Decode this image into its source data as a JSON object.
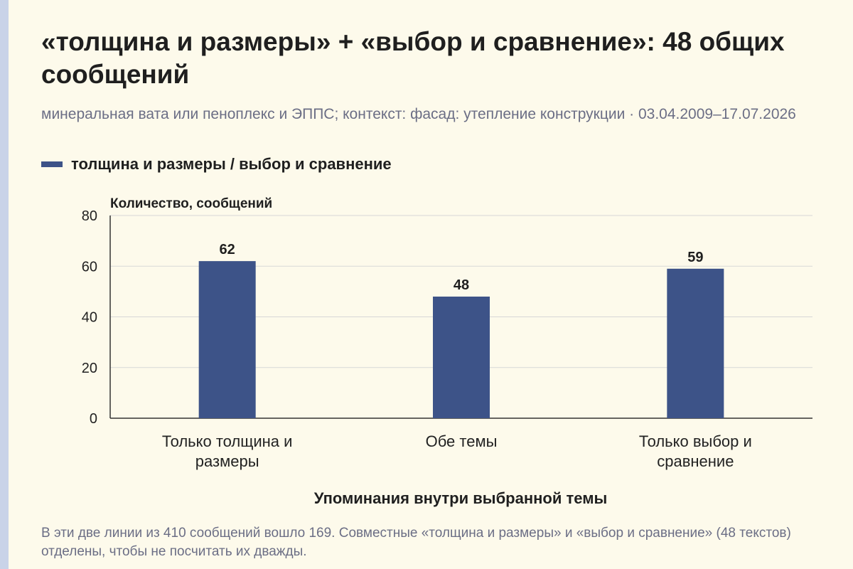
{
  "header": {
    "title": "«толщина и размеры» + «выбор и сравнение»: 48 общих сообщений",
    "subtitle": "минеральная вата или пеноплекс и ЭППС; контекст: фасад: утепление конструкции · 03.04.2009–17.07.2026"
  },
  "legend": {
    "label": "толщина и размеры / выбор и сравнение",
    "color": "#3d5388"
  },
  "chart_data": {
    "type": "bar",
    "categories": [
      [
        "Только толщина и",
        "размеры"
      ],
      [
        "Обе темы"
      ],
      [
        "Только выбор и",
        "сравнение"
      ]
    ],
    "series": [
      {
        "values": [
          62,
          48,
          59
        ],
        "color": "#3d5388"
      }
    ],
    "data_labels": [
      "62",
      "48",
      "59"
    ],
    "ylabel": "Количество, сообщений",
    "xlabel": "Упоминания внутри выбранной темы",
    "ylim": [
      0,
      80
    ],
    "yticks": [
      0,
      20,
      40,
      60,
      80
    ],
    "grid": true,
    "legend_position": "top-left"
  },
  "footer": {
    "note": "В эти две линии из 410 сообщений вошло 169. Совместные «толщина и размеры» и «выбор и сравнение» (48 текстов) отделены, чтобы не посчитать их дважды."
  }
}
